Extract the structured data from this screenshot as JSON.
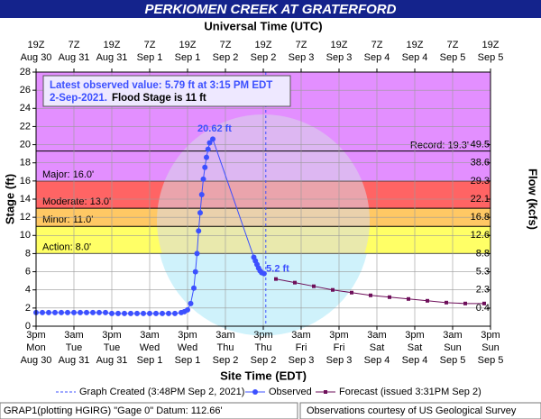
{
  "chart_data": {
    "type": "hydrograph",
    "title": "PERKIOMEN CREEK AT GRATERFORD",
    "top_axis_title": "Universal Time (UTC)",
    "x_axis_title": "Site Time (EDT)",
    "y_axis_title": "Stage (ft)",
    "y2_axis_title": "Flow (kcfs)",
    "xlim": [
      "Aug 30 15:00",
      "Sep 5 15:00"
    ],
    "xticks": [
      {
        "value": "Aug 30 15:00",
        "label": "3pm",
        "day": "Mon",
        "date": "Aug 30"
      },
      {
        "value": "Aug 31 03:00",
        "label": "3am",
        "day": "Tue",
        "date": "Aug 31"
      },
      {
        "value": "Aug 31 15:00",
        "label": "3pm",
        "day": "Tue",
        "date": "Aug 31"
      },
      {
        "value": "Sep 1 03:00",
        "label": "3am",
        "day": "Wed",
        "date": "Sep 1"
      },
      {
        "value": "Sep 1 15:00",
        "label": "3pm",
        "day": "Wed",
        "date": "Sep 1"
      },
      {
        "value": "Sep 2 03:00",
        "label": "3am",
        "day": "Thu",
        "date": "Sep 2"
      },
      {
        "value": "Sep 2 15:00",
        "label": "3pm",
        "day": "Thu",
        "date": "Sep 2"
      },
      {
        "value": "Sep 3 03:00",
        "label": "3am",
        "day": "Fri",
        "date": "Sep 3"
      },
      {
        "value": "Sep 3 15:00",
        "label": "3pm",
        "day": "Fri",
        "date": "Sep 3"
      },
      {
        "value": "Sep 4 03:00",
        "label": "3am",
        "day": "Sat",
        "date": "Sep 4"
      },
      {
        "value": "Sep 4 15:00",
        "label": "3pm",
        "day": "Sat",
        "date": "Sep 4"
      },
      {
        "value": "Sep 5 03:00",
        "label": "3am",
        "day": "Sun",
        "date": "Sep 5"
      },
      {
        "value": "Sep 5 15:00",
        "label": "3pm",
        "day": "Sun",
        "date": "Sep 5"
      }
    ],
    "top_ticks": [
      {
        "value": "Aug 30 15:00",
        "label": "19Z",
        "date": "Aug 30"
      },
      {
        "value": "Aug 31 03:00",
        "label": "7Z",
        "date": "Aug 31"
      },
      {
        "value": "Aug 31 15:00",
        "label": "19Z",
        "date": "Aug 31"
      },
      {
        "value": "Sep 1 03:00",
        "label": "7Z",
        "date": "Sep 1"
      },
      {
        "value": "Sep 1 15:00",
        "label": "19Z",
        "date": "Sep 1"
      },
      {
        "value": "Sep 2 03:00",
        "label": "7Z",
        "date": "Sep 2"
      },
      {
        "value": "Sep 2 15:00",
        "label": "19Z",
        "date": "Sep 2"
      },
      {
        "value": "Sep 3 03:00",
        "label": "7Z",
        "date": "Sep 3"
      },
      {
        "value": "Sep 3 15:00",
        "label": "19Z",
        "date": "Sep 3"
      },
      {
        "value": "Sep 4 03:00",
        "label": "7Z",
        "date": "Sep 4"
      },
      {
        "value": "Sep 4 15:00",
        "label": "19Z",
        "date": "Sep 4"
      },
      {
        "value": "Sep 5 03:00",
        "label": "7Z",
        "date": "Sep 5"
      },
      {
        "value": "Sep 5 15:00",
        "label": "19Z",
        "date": "Sep 5"
      }
    ],
    "ylim": [
      0,
      28
    ],
    "yticks": [
      0,
      2,
      4,
      6,
      8,
      10,
      12,
      14,
      16,
      18,
      20,
      22,
      24,
      26,
      28
    ],
    "flow_ticks": [
      {
        "stage": 2,
        "flow": 0.4
      },
      {
        "stage": 4,
        "flow": 2.3
      },
      {
        "stage": 6,
        "flow": 5.3
      },
      {
        "stage": 8,
        "flow": 8.8
      },
      {
        "stage": 10,
        "flow": 12.6
      },
      {
        "stage": 12,
        "flow": 16.8
      },
      {
        "stage": 14,
        "flow": 22.1
      },
      {
        "stage": 16,
        "flow": 29.3
      },
      {
        "stage": 18,
        "flow": 38.6
      },
      {
        "stage": 20,
        "flow": 49.5
      }
    ],
    "grid": true,
    "flood_stages": [
      {
        "value": 8,
        "label": "Action: 8.0'",
        "color": "#ffff66"
      },
      {
        "value": 11,
        "label": "Minor: 11.0'",
        "color": "#ffc864"
      },
      {
        "value": 13,
        "label": "Moderate: 13.0'",
        "color": "#ff6464"
      },
      {
        "value": 16,
        "label": "Major: 16.0'",
        "color": "#e38fff"
      }
    ],
    "record": {
      "value": 19.3,
      "label": "Record: 19.3'"
    },
    "info_line1": "Latest observed value: 5.79 ft at 3:15 PM EDT",
    "info_date": "2-Sep-2021.",
    "info_flood": "Flood Stage is 11 ft",
    "graph_created": {
      "x": "Sep 2 15:48",
      "label": "Graph Created (3:48PM Sep 2, 2021)"
    },
    "series": [
      {
        "name": "Observed",
        "color": "#3c50ff",
        "x": [
          "Aug 30 15:00",
          "Aug 30 17:00",
          "Aug 30 19:00",
          "Aug 30 21:00",
          "Aug 30 23:00",
          "Aug 31 01:00",
          "Aug 31 03:00",
          "Aug 31 05:00",
          "Aug 31 07:00",
          "Aug 31 09:00",
          "Aug 31 11:00",
          "Aug 31 13:00",
          "Aug 31 15:00",
          "Aug 31 17:00",
          "Aug 31 19:00",
          "Aug 31 21:00",
          "Aug 31 23:00",
          "Sep 1 01:00",
          "Sep 1 03:00",
          "Sep 1 05:00",
          "Sep 1 07:00",
          "Sep 1 09:00",
          "Sep 1 11:00",
          "Sep 1 13:00",
          "Sep 1 14:00",
          "Sep 1 15:00",
          "Sep 1 16:00",
          "Sep 1 17:00",
          "Sep 1 17:30",
          "Sep 1 18:00",
          "Sep 1 18:30",
          "Sep 1 19:00",
          "Sep 1 19:30",
          "Sep 1 20:00",
          "Sep 1 20:30",
          "Sep 1 21:00",
          "Sep 1 21:30",
          "Sep 1 22:00",
          "Sep 1 23:00",
          "Sep 2 12:00",
          "Sep 2 12:30",
          "Sep 2 13:00",
          "Sep 2 13:30",
          "Sep 2 14:00",
          "Sep 2 14:30",
          "Sep 2 15:15"
        ],
        "values": [
          1.5,
          1.5,
          1.5,
          1.5,
          1.5,
          1.5,
          1.5,
          1.5,
          1.5,
          1.5,
          1.5,
          1.5,
          1.4,
          1.4,
          1.4,
          1.4,
          1.4,
          1.4,
          1.4,
          1.4,
          1.4,
          1.4,
          1.4,
          1.5,
          1.6,
          1.8,
          2.5,
          4.2,
          6.0,
          8.0,
          10.5,
          12.5,
          14.5,
          16.2,
          17.5,
          18.6,
          19.5,
          20.2,
          20.62,
          7.6,
          7.2,
          6.8,
          6.4,
          6.1,
          5.9,
          5.79
        ]
      },
      {
        "name": "Forecast (issued 3:31PM Sep 2)",
        "color": "#6e0f5a",
        "x": [
          "Sep 2 19:00",
          "Sep 3 01:00",
          "Sep 3 07:00",
          "Sep 3 13:00",
          "Sep 3 19:00",
          "Sep 4 01:00",
          "Sep 4 07:00",
          "Sep 4 13:00",
          "Sep 4 19:00",
          "Sep 5 01:00",
          "Sep 5 07:00",
          "Sep 5 13:00"
        ],
        "values": [
          5.2,
          4.8,
          4.4,
          4.0,
          3.7,
          3.4,
          3.2,
          3.0,
          2.8,
          2.6,
          2.5,
          2.5
        ]
      }
    ],
    "annotations": [
      {
        "text": "20.62 ft",
        "x": "Sep 1 23:00",
        "y": 20.62
      },
      {
        "text": "5.2 ft",
        "x": "Sep 2 19:00",
        "y": 5.2
      }
    ],
    "footer_left": "GRAP1(plotting HGIRG) \"Gage 0\" Datum: 112.66'",
    "footer_right": "Observations courtesy of US Geological Survey"
  }
}
